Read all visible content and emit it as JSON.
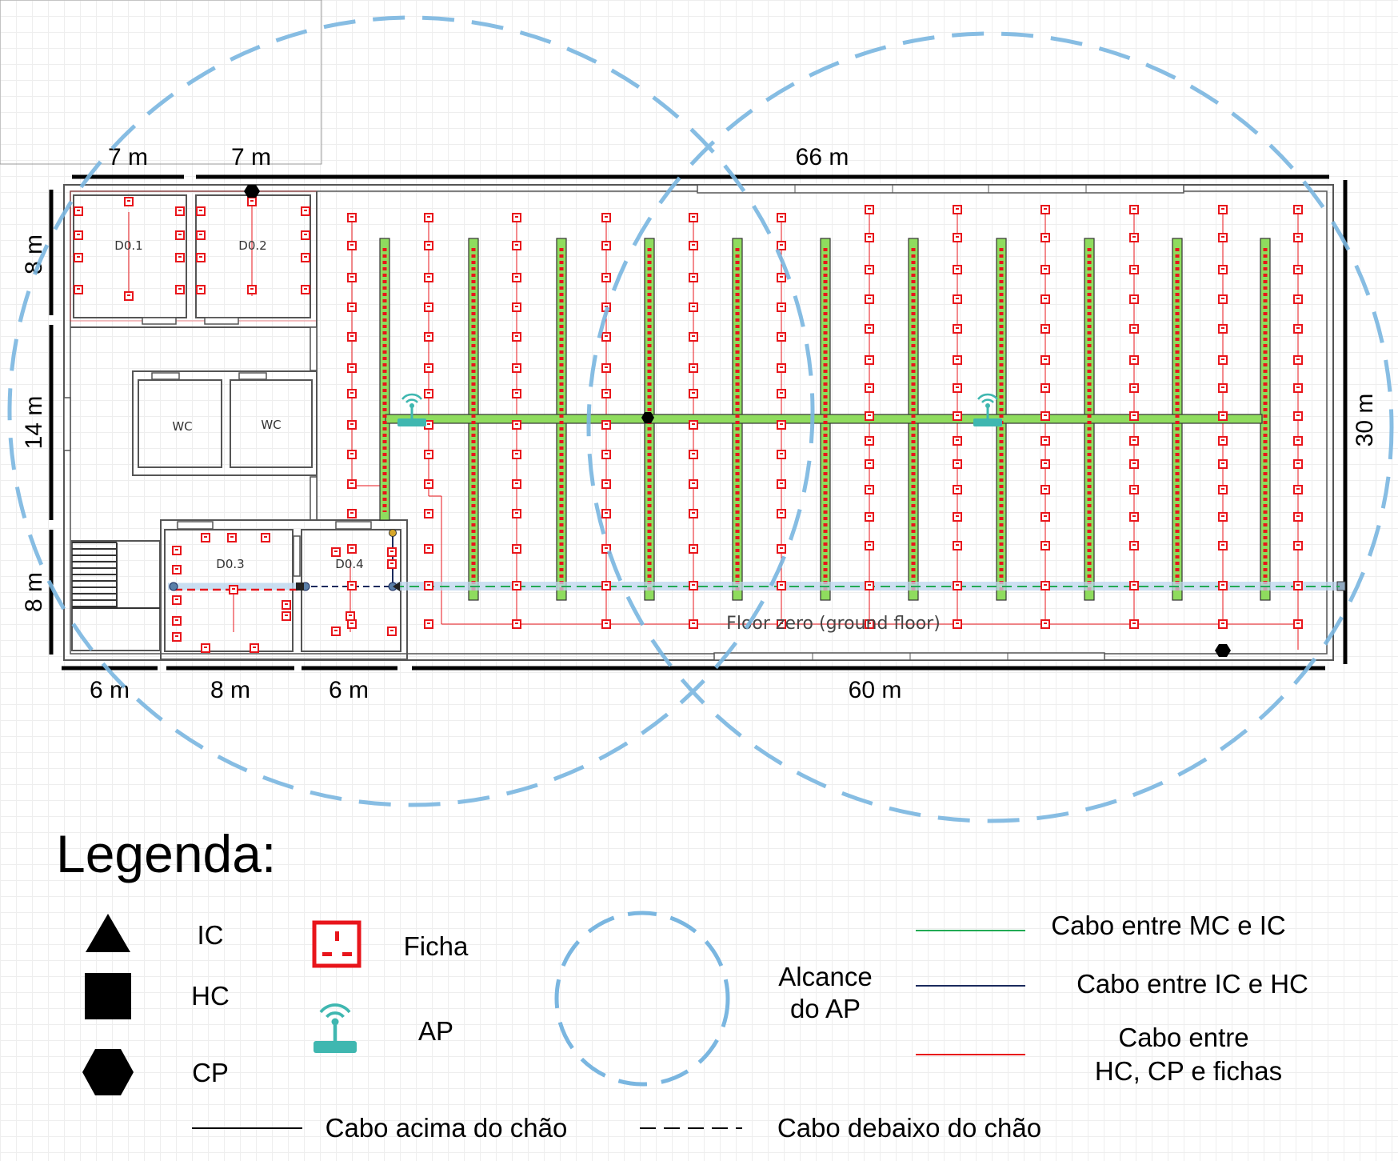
{
  "dimensions": {
    "top": [
      "7 m",
      "7 m",
      "66 m"
    ],
    "bottom": [
      "6 m",
      "8 m",
      "6 m",
      "60 m"
    ],
    "left": [
      "8 m",
      "14 m",
      "8 m"
    ],
    "right": "30 m"
  },
  "rooms": {
    "d01": "D0.1",
    "d02": "D0.2",
    "d03": "D0.3",
    "d04": "D0.4",
    "wc1": "WC",
    "wc2": "WC"
  },
  "floor_label": "Floor zero (ground floor)",
  "legend": {
    "title": "Legenda:",
    "ic": "IC",
    "hc": "HC",
    "cp": "CP",
    "ficha": "Ficha",
    "ap": "AP",
    "range_line1": "Alcance",
    "range_line2": "do AP",
    "cable_mc_ic": "Cabo entre MC e IC",
    "cable_ic_hc": "Cabo entre IC e HC",
    "cable_hc_line1": "Cabo entre",
    "cable_hc_line2": "HC, CP e fichas",
    "cable_above": "Cabo acima do chão",
    "cable_below": "Cabo debaixo do chão"
  },
  "colors": {
    "wall": "#000000",
    "outlet": "#e8151b",
    "cable_mc_ic": "#22aa55",
    "cable_ic_hc": "#1a2a5c",
    "cable_hc": "#e8151b",
    "ap": "#3fb7b0",
    "ap_range": "#7ab6e0",
    "rack_green": "#8fdc5e"
  }
}
